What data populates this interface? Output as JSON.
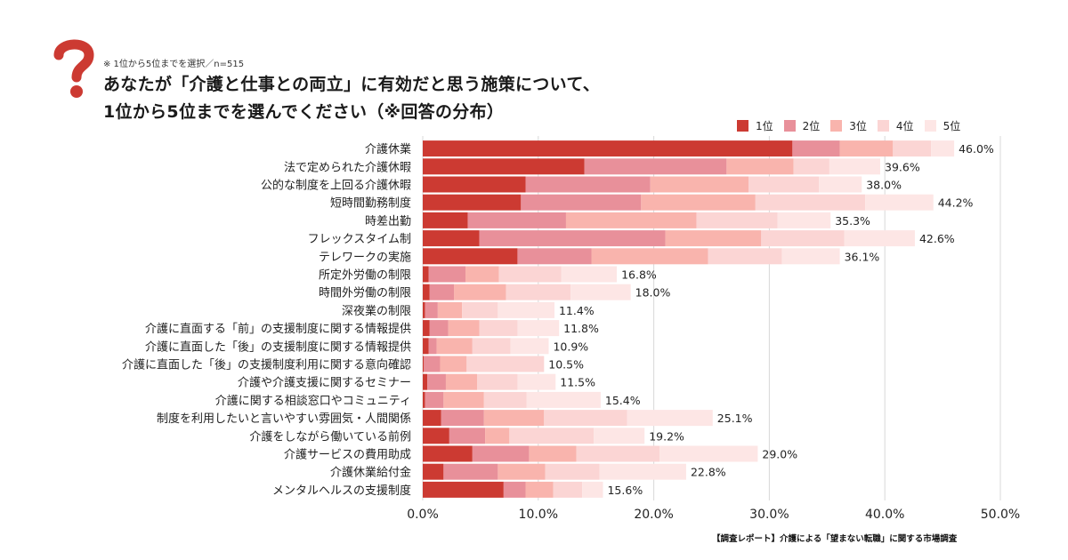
{
  "header": {
    "note": "※ 1位から5位までを選択／n=515",
    "title_line1": "あなたが「介護と仕事との両立」に有効だと思う施策について、",
    "title_line2": "1位から5位までを選んでください（※回答の分布）"
  },
  "icons": {
    "question": "question-mark-icon"
  },
  "colors": {
    "rank1": "#cc3a32",
    "rank2": "#e8909a",
    "rank3": "#f9b4ad",
    "rank4": "#fbd5d4",
    "rank5": "#fde6e5",
    "accent": "#cc3a32",
    "grid": "#d8d8d8"
  },
  "source": "【調査レポート】介護による「望まない転職」に関する市場調査",
  "chart_data": {
    "type": "bar",
    "orientation": "horizontal",
    "stacked": true,
    "categories": [
      "介護休業",
      "法で定められた介護休暇",
      "公的な制度を上回る介護休暇",
      "短時間勤務制度",
      "時差出勤",
      "フレックスタイム制",
      "テレワークの実施",
      "所定外労働の制限",
      "時間外労働の制限",
      "深夜業の制限",
      "介護に直面する「前」の支援制度に関する情報提供",
      "介護に直面した「後」の支援制度に関する情報提供",
      "介護に直面した「後」の支援制度利用に関する意向確認",
      "介護や介護支援に関するセミナー",
      "介護に関する相談窓口やコミュニティ",
      "制度を利用したいと言いやすい雰囲気・人間関係",
      "介護をしながら働いている前例",
      "介護サービスの費用助成",
      "介護休業給付金",
      "メンタルヘルスの支援制度"
    ],
    "series": [
      {
        "name": "1位",
        "values": [
          32.0,
          14.0,
          8.9,
          8.5,
          3.9,
          4.9,
          8.2,
          0.5,
          0.6,
          0.2,
          0.6,
          0.5,
          0.1,
          0.4,
          0.2,
          1.6,
          2.3,
          4.3,
          1.8,
          7.0
        ]
      },
      {
        "name": "2位",
        "values": [
          4.1,
          12.3,
          10.8,
          10.4,
          8.5,
          16.1,
          6.4,
          3.2,
          2.1,
          1.1,
          1.6,
          0.7,
          1.4,
          1.6,
          1.6,
          3.7,
          3.1,
          4.9,
          4.7,
          1.9
        ]
      },
      {
        "name": "3位",
        "values": [
          4.6,
          5.8,
          8.5,
          9.9,
          11.3,
          8.3,
          10.1,
          2.9,
          4.5,
          2.1,
          2.7,
          3.1,
          2.3,
          2.7,
          3.5,
          5.2,
          2.1,
          4.1,
          4.1,
          2.4
        ]
      },
      {
        "name": "4位",
        "values": [
          3.3,
          3.1,
          6.1,
          9.5,
          7.0,
          7.2,
          6.4,
          5.4,
          5.6,
          3.1,
          3.3,
          3.3,
          6.7,
          3.5,
          3.7,
          7.2,
          7.3,
          7.2,
          4.7,
          2.5
        ]
      },
      {
        "name": "5位",
        "values": [
          2.0,
          4.4,
          3.7,
          5.9,
          4.6,
          6.1,
          5.0,
          4.8,
          5.2,
          4.9,
          3.6,
          3.3,
          0.0,
          3.3,
          6.4,
          7.4,
          4.4,
          8.5,
          7.5,
          1.8
        ]
      }
    ],
    "totals": [
      46.0,
      39.6,
      38.0,
      44.2,
      35.3,
      42.6,
      36.1,
      16.8,
      18.0,
      11.4,
      11.8,
      10.9,
      10.5,
      11.5,
      15.4,
      25.1,
      19.2,
      29.0,
      22.8,
      15.6
    ],
    "total_labels": [
      "46.0%",
      "39.6%",
      "38.0%",
      "44.2%",
      "35.3%",
      "42.6%",
      "36.1%",
      "16.8%",
      "18.0%",
      "11.4%",
      "11.8%",
      "10.9%",
      "10.5%",
      "11.5%",
      "15.4%",
      "25.1%",
      "19.2%",
      "29.0%",
      "22.8%",
      "15.6%"
    ],
    "xlim": [
      0,
      50
    ],
    "xticks": [
      0,
      10,
      20,
      30,
      40,
      50
    ],
    "xtick_labels": [
      "0.0%",
      "10.0%",
      "20.0%",
      "30.0%",
      "40.0%",
      "50.0%"
    ],
    "legend": [
      "1位",
      "2位",
      "3位",
      "4位",
      "5位"
    ],
    "legend_position": "top-right",
    "grid": true
  }
}
